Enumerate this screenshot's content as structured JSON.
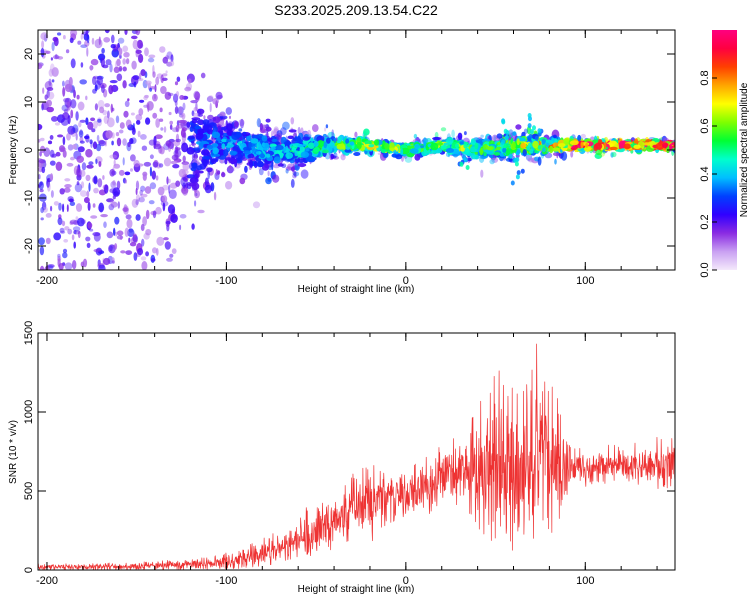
{
  "figure": {
    "title": "S233.2025.209.13.54.C22"
  },
  "chart_data": [
    {
      "type": "heatmap",
      "title": "S233.2025.209.13.54.C22",
      "xlabel": "Height of straight line (km)",
      "ylabel": "Frequency (Hz)",
      "xlim": [
        -205,
        150
      ],
      "ylim": [
        -25,
        25
      ],
      "x_ticks": [
        -200,
        -100,
        0,
        100
      ],
      "y_ticks": [
        -20,
        -10,
        0,
        10,
        20
      ],
      "x_tick_labels": [
        "-200",
        "-100",
        "0",
        "100"
      ],
      "y_tick_labels": [
        "-20",
        "-10",
        "0",
        "10",
        "20"
      ],
      "grid": false,
      "colorbar": {
        "label": "Normalized spectral amplitude",
        "range": [
          0,
          1
        ],
        "ticks": [
          0.0,
          0.2,
          0.4,
          0.6,
          0.8
        ],
        "tick_labels": [
          "0.0",
          "0.2",
          "0.4",
          "0.6",
          "0.8"
        ],
        "colormap": [
          "#f4e9fb",
          "#c9a0f2",
          "#8a2be2",
          "#3000ff",
          "#0040ff",
          "#00bfff",
          "#00ffcc",
          "#00ff33",
          "#7fff00",
          "#ffff00",
          "#ffa500",
          "#ff4000",
          "#ff0040",
          "#ff007f"
        ]
      },
      "profile": {
        "note_x": [
          -205,
          -150,
          -120,
          -100,
          -80,
          -60,
          -40,
          -20,
          0,
          20,
          40,
          60,
          80,
          100,
          150
        ],
        "center_freq": [
          0,
          0,
          1,
          1,
          0,
          0,
          1,
          1,
          0,
          1,
          0,
          1,
          1,
          1,
          1
        ],
        "spread_hz": [
          24,
          24,
          12,
          5,
          5,
          4,
          2.5,
          1.5,
          1.5,
          1.5,
          2.5,
          3,
          2,
          1.2,
          1
        ],
        "peak_amplitude": [
          0.15,
          0.15,
          0.2,
          0.25,
          0.3,
          0.35,
          0.45,
          0.6,
          0.5,
          0.55,
          0.5,
          0.6,
          0.7,
          0.85,
          0.9
        ]
      }
    },
    {
      "type": "line",
      "xlabel": "Height of straight line (km)",
      "ylabel": "SNR (10 * v/v)",
      "xlim": [
        -205,
        150
      ],
      "ylim": [
        0,
        1500
      ],
      "x_ticks": [
        -200,
        -100,
        0,
        100
      ],
      "y_ticks": [
        0,
        500,
        1000,
        1500
      ],
      "x_tick_labels": [
        "-200",
        "-100",
        "0",
        "100"
      ],
      "y_tick_labels": [
        "0",
        "500",
        "1000",
        "1500"
      ],
      "grid": false,
      "series": [
        {
          "color": "#ee3333",
          "envelope_x": [
            -205,
            -180,
            -150,
            -120,
            -100,
            -90,
            -80,
            -70,
            -60,
            -50,
            -40,
            -30,
            -20,
            -10,
            0,
            10,
            20,
            30,
            40,
            50,
            60,
            70,
            75,
            80,
            90,
            95,
            100,
            120,
            150
          ],
          "envelope_min": [
            0,
            0,
            0,
            0,
            5,
            10,
            20,
            40,
            70,
            100,
            130,
            200,
            150,
            300,
            300,
            320,
            380,
            420,
            230,
            150,
            100,
            80,
            150,
            200,
            400,
            580,
            520,
            540,
            500
          ],
          "envelope_max": [
            40,
            40,
            50,
            70,
            110,
            160,
            200,
            260,
            350,
            450,
            430,
            610,
            710,
            600,
            650,
            700,
            800,
            850,
            1020,
            1300,
            1200,
            1400,
            1500,
            1200,
            1100,
            800,
            760,
            820,
            850
          ],
          "typical": [
            20,
            20,
            25,
            35,
            55,
            75,
            100,
            150,
            200,
            250,
            300,
            380,
            450,
            470,
            480,
            500,
            580,
            630,
            620,
            700,
            680,
            700,
            700,
            680,
            650,
            680,
            640,
            660,
            650
          ]
        }
      ]
    }
  ]
}
